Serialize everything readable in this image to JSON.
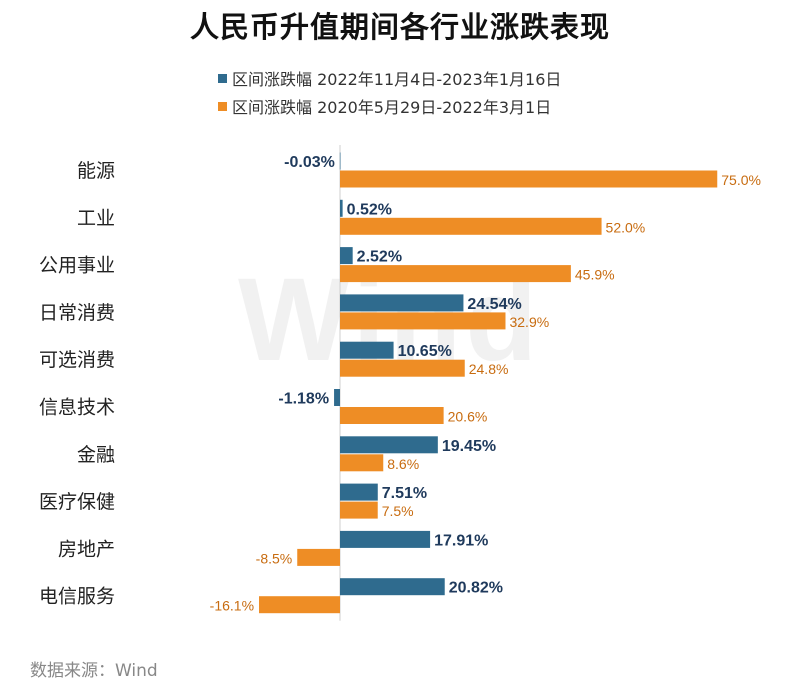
{
  "watermark": "Wind",
  "source": "数据来源：Wind",
  "colors": {
    "series1": "#2f6b8e",
    "series2": "#ee8d25",
    "label1": "#1f3a5c",
    "label2": "#c86c10"
  },
  "chart_data": {
    "type": "bar",
    "orientation": "horizontal",
    "title": "人民币升值期间各行业涨跌表现",
    "categories": [
      "能源",
      "工业",
      "公用事业",
      "日常消费",
      "可选消费",
      "信息技术",
      "金融",
      "医疗保健",
      "房地产",
      "电信服务"
    ],
    "series": [
      {
        "name": "区间涨跌幅 2022年11月4日-2023年1月16日",
        "values": [
          -0.03,
          0.52,
          2.52,
          24.54,
          10.65,
          -1.18,
          19.45,
          7.51,
          17.91,
          20.82
        ],
        "labels": [
          "-0.03%",
          "0.52%",
          "2.52%",
          "24.54%",
          "10.65%",
          "-1.18%",
          "19.45%",
          "7.51%",
          "17.91%",
          "20.82%"
        ]
      },
      {
        "name": "区间涨跌幅 2020年5月29日-2022年3月1日",
        "values": [
          75.0,
          52.0,
          45.9,
          32.9,
          24.8,
          20.6,
          8.6,
          7.5,
          -8.5,
          -16.1
        ],
        "labels": [
          "75.0%",
          "52.0%",
          "45.9%",
          "32.9%",
          "24.8%",
          "20.6%",
          "8.6%",
          "7.5%",
          "-8.5%",
          "-16.1%"
        ]
      }
    ],
    "unit": "%",
    "legend_position": "top",
    "grid": false,
    "axis_labels_visible": false
  }
}
